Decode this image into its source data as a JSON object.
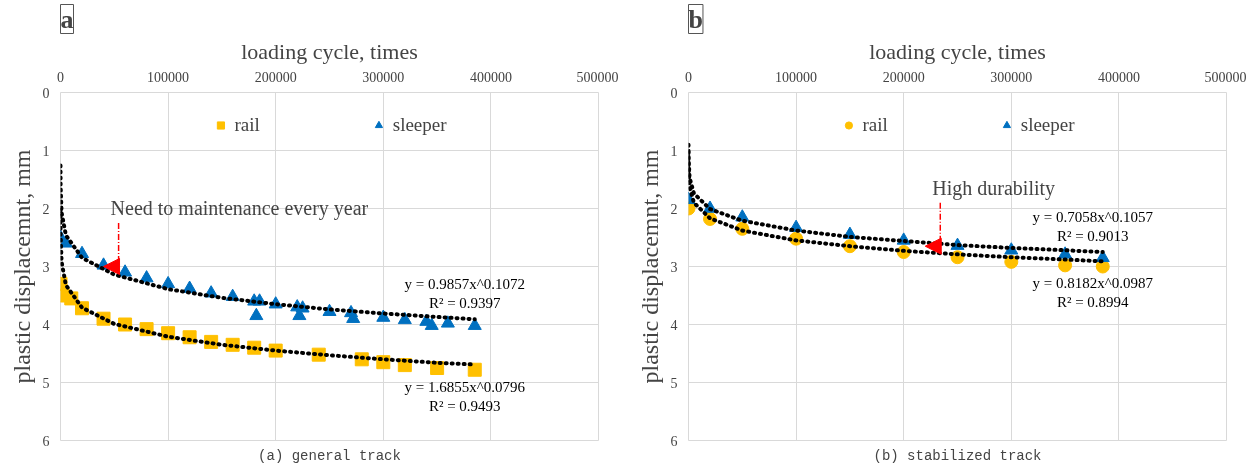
{
  "chart_data": [
    {
      "type": "scatter",
      "title": "a",
      "xlabel": "loading cycle, times",
      "ylabel": "plastic displacemnt, mm",
      "xlim": [
        0,
        500000
      ],
      "xticks": [
        0,
        100000,
        200000,
        300000,
        400000,
        500000
      ],
      "ylim": [
        6,
        0
      ],
      "yticks": [
        0,
        1,
        2,
        3,
        4,
        5,
        6
      ],
      "grid": true,
      "legend": "top",
      "series": [
        {
          "name": "rail",
          "color": "#ffc000",
          "marker": "square",
          "x": [
            0,
            2000,
            10000,
            20000,
            40000,
            60000,
            80000,
            100000,
            120000,
            140000,
            160000,
            180000,
            200000,
            240000,
            280000,
            300000,
            320000,
            350000,
            385000
          ],
          "values": [
            3.3,
            3.5,
            3.55,
            3.72,
            3.9,
            4.0,
            4.08,
            4.15,
            4.22,
            4.3,
            4.35,
            4.4,
            4.45,
            4.52,
            4.6,
            4.65,
            4.7,
            4.75,
            4.78
          ]
        },
        {
          "name": "sleeper",
          "color": "#0070c0",
          "marker": "triangle",
          "x": [
            0,
            5000,
            20000,
            40000,
            60000,
            80000,
            100000,
            120000,
            140000,
            160000,
            180000,
            182000,
            185000,
            200000,
            220000,
            222000,
            225000,
            250000,
            270000,
            272000,
            300000,
            320000,
            340000,
            345000,
            360000,
            385000
          ],
          "values": [
            2.5,
            2.6,
            2.78,
            2.98,
            3.1,
            3.2,
            3.3,
            3.38,
            3.46,
            3.52,
            3.6,
            3.85,
            3.6,
            3.65,
            3.7,
            3.85,
            3.72,
            3.78,
            3.8,
            3.9,
            3.88,
            3.92,
            3.95,
            4.02,
            3.98,
            4.02
          ]
        },
        {
          "name": "y = 0.9857x^0.1072\nR² = 0.9397",
          "type": "line",
          "color": "#000000",
          "line_style": "dotted",
          "x": [
            10,
            100,
            1000,
            5000,
            20000,
            50000,
            100000,
            150000,
            200000,
            250000,
            300000,
            350000,
            385000
          ],
          "values": [
            1.26,
            1.61,
            2.07,
            2.46,
            2.85,
            3.14,
            3.39,
            3.54,
            3.65,
            3.74,
            3.81,
            3.87,
            3.91
          ]
        },
        {
          "name": "y = 1.6855x^0.0796\nR² = 0.9493",
          "type": "line",
          "color": "#000000",
          "line_style": "dotted",
          "x": [
            10,
            100,
            1000,
            5000,
            20000,
            50000,
            100000,
            150000,
            200000,
            250000,
            300000,
            350000,
            385000
          ],
          "values": [
            2.02,
            2.43,
            2.92,
            3.32,
            3.71,
            3.99,
            4.21,
            4.35,
            4.45,
            4.53,
            4.6,
            4.66,
            4.69
          ]
        }
      ],
      "annotations": [
        {
          "text": "Need to maintenance every year",
          "x": 40000,
          "y": 3.0
        },
        "(a) general track"
      ]
    },
    {
      "type": "scatter",
      "title": "b",
      "xlabel": "loading cycle, times",
      "ylabel": "plastic displacemnt, mm",
      "xlim": [
        0,
        500000
      ],
      "xticks": [
        0,
        100000,
        200000,
        300000,
        400000,
        500000
      ],
      "ylim": [
        6,
        0
      ],
      "yticks": [
        0,
        1,
        2,
        3,
        4,
        5,
        6
      ],
      "grid": true,
      "legend": "top",
      "series": [
        {
          "name": "rail",
          "color": "#ffc000",
          "marker": "circle",
          "x": [
            0,
            20000,
            50000,
            100000,
            150000,
            200000,
            250000,
            300000,
            350000,
            385000
          ],
          "values": [
            2.0,
            2.18,
            2.35,
            2.52,
            2.65,
            2.75,
            2.84,
            2.92,
            2.98,
            3.0
          ]
        },
        {
          "name": "sleeper",
          "color": "#0070c0",
          "marker": "triangle",
          "x": [
            0,
            20000,
            50000,
            100000,
            150000,
            200000,
            250000,
            300000,
            350000,
            385000
          ],
          "values": [
            1.85,
            2.0,
            2.15,
            2.33,
            2.45,
            2.55,
            2.64,
            2.72,
            2.79,
            2.85
          ]
        },
        {
          "name": "y = 0.7058x^0.1057\nR² = 0.9013",
          "type": "line",
          "color": "#000000",
          "line_style": "dotted",
          "x": [
            10,
            100,
            1000,
            5000,
            20000,
            50000,
            100000,
            150000,
            200000,
            250000,
            300000,
            350000,
            385000
          ],
          "values": [
            0.9,
            1.15,
            1.47,
            1.74,
            2.01,
            2.21,
            2.38,
            2.49,
            2.56,
            2.63,
            2.68,
            2.72,
            2.75
          ]
        },
        {
          "name": "y = 0.8182x^0.0987\nR² = 0.8994",
          "type": "line",
          "color": "#000000",
          "line_style": "dotted",
          "x": [
            10,
            100,
            1000,
            5000,
            20000,
            50000,
            100000,
            150000,
            200000,
            250000,
            300000,
            350000,
            385000
          ],
          "values": [
            1.03,
            1.29,
            1.62,
            1.9,
            2.17,
            2.38,
            2.55,
            2.65,
            2.73,
            2.79,
            2.84,
            2.88,
            2.91
          ]
        }
      ],
      "annotations": [
        {
          "text": "High durability",
          "x": 220000,
          "y": 2.65
        },
        "(b) stabilized track"
      ]
    }
  ]
}
